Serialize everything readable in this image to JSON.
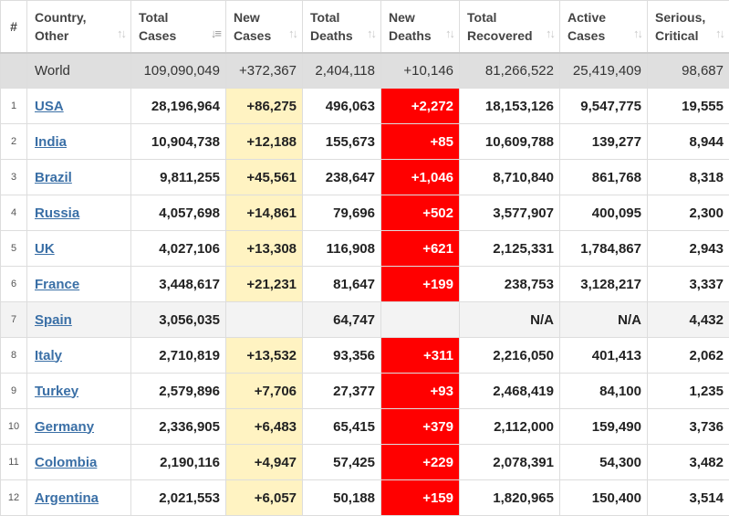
{
  "columns": [
    {
      "key": "idx",
      "label1": "#",
      "label2": ""
    },
    {
      "key": "country",
      "label1": "Country,",
      "label2": "Other"
    },
    {
      "key": "total_cases",
      "label1": "Total",
      "label2": "Cases"
    },
    {
      "key": "new_cases",
      "label1": "New",
      "label2": "Cases"
    },
    {
      "key": "total_deaths",
      "label1": "Total",
      "label2": "Deaths"
    },
    {
      "key": "new_deaths",
      "label1": "New",
      "label2": "Deaths"
    },
    {
      "key": "total_recovered",
      "label1": "Total",
      "label2": "Recovered"
    },
    {
      "key": "active_cases",
      "label1": "Active",
      "label2": "Cases"
    },
    {
      "key": "serious",
      "label1": "Serious,",
      "label2": "Critical"
    }
  ],
  "sort_icon": "sort-arrows-icon",
  "world": {
    "country": "World",
    "total_cases": "109,090,049",
    "new_cases": "+372,367",
    "total_deaths": "2,404,118",
    "new_deaths": "+10,146",
    "total_recovered": "81,266,522",
    "active_cases": "25,419,409",
    "serious": "98,687"
  },
  "rows": [
    {
      "idx": "1",
      "country": "USA",
      "total_cases": "28,196,964",
      "new_cases": "+86,275",
      "total_deaths": "496,063",
      "new_deaths": "+2,272",
      "total_recovered": "18,153,126",
      "active_cases": "9,547,775",
      "serious": "19,555"
    },
    {
      "idx": "2",
      "country": "India",
      "total_cases": "10,904,738",
      "new_cases": "+12,188",
      "total_deaths": "155,673",
      "new_deaths": "+85",
      "total_recovered": "10,609,788",
      "active_cases": "139,277",
      "serious": "8,944"
    },
    {
      "idx": "3",
      "country": "Brazil",
      "total_cases": "9,811,255",
      "new_cases": "+45,561",
      "total_deaths": "238,647",
      "new_deaths": "+1,046",
      "total_recovered": "8,710,840",
      "active_cases": "861,768",
      "serious": "8,318"
    },
    {
      "idx": "4",
      "country": "Russia",
      "total_cases": "4,057,698",
      "new_cases": "+14,861",
      "total_deaths": "79,696",
      "new_deaths": "+502",
      "total_recovered": "3,577,907",
      "active_cases": "400,095",
      "serious": "2,300"
    },
    {
      "idx": "5",
      "country": "UK",
      "total_cases": "4,027,106",
      "new_cases": "+13,308",
      "total_deaths": "116,908",
      "new_deaths": "+621",
      "total_recovered": "2,125,331",
      "active_cases": "1,784,867",
      "serious": "2,943"
    },
    {
      "idx": "6",
      "country": "France",
      "total_cases": "3,448,617",
      "new_cases": "+21,231",
      "total_deaths": "81,647",
      "new_deaths": "+199",
      "total_recovered": "238,753",
      "active_cases": "3,128,217",
      "serious": "3,337"
    },
    {
      "idx": "7",
      "country": "Spain",
      "total_cases": "3,056,035",
      "new_cases": "",
      "total_deaths": "64,747",
      "new_deaths": "",
      "total_recovered": "N/A",
      "active_cases": "N/A",
      "serious": "4,432",
      "grey": true
    },
    {
      "idx": "8",
      "country": "Italy",
      "total_cases": "2,710,819",
      "new_cases": "+13,532",
      "total_deaths": "93,356",
      "new_deaths": "+311",
      "total_recovered": "2,216,050",
      "active_cases": "401,413",
      "serious": "2,062"
    },
    {
      "idx": "9",
      "country": "Turkey",
      "total_cases": "2,579,896",
      "new_cases": "+7,706",
      "total_deaths": "27,377",
      "new_deaths": "+93",
      "total_recovered": "2,468,419",
      "active_cases": "84,100",
      "serious": "1,235"
    },
    {
      "idx": "10",
      "country": "Germany",
      "total_cases": "2,336,905",
      "new_cases": "+6,483",
      "total_deaths": "65,415",
      "new_deaths": "+379",
      "total_recovered": "2,112,000",
      "active_cases": "159,490",
      "serious": "3,736"
    },
    {
      "idx": "11",
      "country": "Colombia",
      "total_cases": "2,190,116",
      "new_cases": "+4,947",
      "total_deaths": "57,425",
      "new_deaths": "+229",
      "total_recovered": "2,078,391",
      "active_cases": "54,300",
      "serious": "3,482"
    },
    {
      "idx": "12",
      "country": "Argentina",
      "total_cases": "2,021,553",
      "new_cases": "+6,057",
      "total_deaths": "50,188",
      "new_deaths": "+159",
      "total_recovered": "1,820,965",
      "active_cases": "150,400",
      "serious": "3,514"
    }
  ],
  "colors": {
    "new_cases_bg": "#fff3c2",
    "new_deaths_bg": "#ff0000",
    "world_bg": "#dfdfdf",
    "link": "#3a6fa6"
  }
}
